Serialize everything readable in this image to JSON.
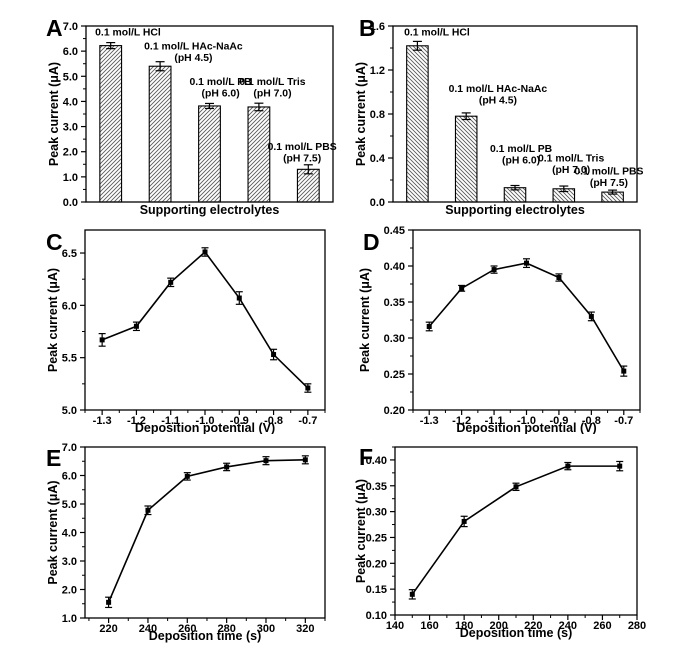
{
  "figure": {
    "background": "#ffffff",
    "ink": "#000000",
    "hatch_color": "#5a5a5a",
    "panels": [
      "A",
      "B",
      "C",
      "D",
      "E",
      "F"
    ]
  },
  "chart_data": [
    {
      "panel": "A",
      "type": "bar",
      "xlabel": "Supporting electrolytes",
      "ylabel": "Peak current (μA)",
      "xlim": [
        0,
        1
      ],
      "ylim": [
        0,
        7
      ],
      "yticks": {
        "values": [
          0,
          1,
          2,
          3,
          4,
          5,
          6,
          7
        ],
        "labels": [
          "0.0",
          "1.0",
          "2.0",
          "3.0",
          "4.0",
          "5.0",
          "6.0",
          "7.0"
        ]
      },
      "hatch": "/",
      "categories": [
        "0.1 mol/L HCl",
        "0.1 mol/L HAc-NaAc (pH 4.5)",
        "0.1 mol/L PB (pH 6.0)",
        "0.1 mol/L Tris (pH 7.0)",
        "0.1 mol/L PBS (pH 7.5)"
      ],
      "values": [
        6.22,
        5.4,
        3.82,
        3.78,
        1.3
      ],
      "errors": [
        0.12,
        0.18,
        0.1,
        0.15,
        0.18
      ],
      "annotations": [
        {
          "lines": [
            "0.1 mol/L HCl"
          ],
          "fx": 0.17,
          "fy": 0.035
        },
        {
          "lines": [
            "0.1 mol/L HAc-NaAc",
            "(pH 4.5)"
          ],
          "fx": 0.435,
          "fy": 0.115
        },
        {
          "lines": [
            "0.1 mol/L PB",
            "(pH 6.0)"
          ],
          "fx": 0.545,
          "fy": 0.315
        },
        {
          "lines": [
            "0.1 mol/L Tris",
            "(pH 7.0)"
          ],
          "fx": 0.755,
          "fy": 0.315
        },
        {
          "lines": [
            "0.1 mol/L PBS",
            "(pH 7.5)"
          ],
          "fx": 0.875,
          "fy": 0.685
        }
      ]
    },
    {
      "panel": "B",
      "type": "bar",
      "xlabel": "Supporting electrolytes",
      "ylabel": "Peak current (μA)",
      "xlim": [
        0,
        1
      ],
      "ylim": [
        0,
        1.6
      ],
      "yticks": {
        "values": [
          0,
          0.4,
          0.8,
          1.2,
          1.6
        ],
        "labels": [
          "0.0",
          "0.4",
          "0.8",
          "1.2",
          "1.6"
        ]
      },
      "hatch": "\\",
      "categories": [
        "0.1 mol/L HCl",
        "0.1 mol/L HAc-NaAc (pH 4.5)",
        "0.1 mol/L PB (pH 6.0)",
        "0.1 mol/L Tris (pH 7.0)",
        "0.1 mol/L PBS (pH 7.5)"
      ],
      "values": [
        1.42,
        0.78,
        0.13,
        0.12,
        0.09
      ],
      "errors": [
        0.04,
        0.03,
        0.02,
        0.025,
        0.018
      ],
      "annotations": [
        {
          "lines": [
            "0.1 mol/L HCl"
          ],
          "fx": 0.18,
          "fy": 0.035
        },
        {
          "lines": [
            "0.1 mol/L HAc-NaAc",
            "(pH 4.5)"
          ],
          "fx": 0.43,
          "fy": 0.355
        },
        {
          "lines": [
            "0.1 mol/L PB",
            "(pH 6.0)"
          ],
          "fx": 0.525,
          "fy": 0.695
        },
        {
          "lines": [
            "0.1 mol/L Tris",
            "(pH 7.0)"
          ],
          "fx": 0.73,
          "fy": 0.75
        },
        {
          "lines": [
            "0.1 mol/L PBS",
            "(pH 7.5)"
          ],
          "fx": 0.885,
          "fy": 0.825
        }
      ]
    },
    {
      "panel": "C",
      "type": "line",
      "xlabel": "Deposition potential (V)",
      "ylabel": "Peak current (μA)",
      "xlim": [
        -1.35,
        -0.65
      ],
      "xticks": {
        "values": [
          -1.3,
          -1.2,
          -1.1,
          -1.0,
          -0.9,
          -0.8,
          -0.7
        ],
        "labels": [
          "-1.3",
          "-1.2",
          "-1.1",
          "-1.0",
          "-0.9",
          "-0.8",
          "-0.7"
        ]
      },
      "ylim": [
        5.0,
        6.72
      ],
      "yticks": {
        "values": [
          5.0,
          5.5,
          6.0,
          6.5
        ],
        "labels": [
          "5.0",
          "5.5",
          "6.0",
          "6.5"
        ]
      },
      "x": [
        -1.3,
        -1.2,
        -1.1,
        -1.0,
        -0.9,
        -0.8,
        -0.7
      ],
      "y": [
        5.67,
        5.8,
        6.22,
        6.51,
        6.07,
        5.53,
        5.21
      ],
      "errors": [
        0.06,
        0.04,
        0.04,
        0.04,
        0.06,
        0.05,
        0.04
      ]
    },
    {
      "panel": "D",
      "type": "line",
      "xlabel": "Deposition potential (V)",
      "ylabel": "Peak current (μA)",
      "xlim": [
        -1.35,
        -0.65
      ],
      "xticks": {
        "values": [
          -1.3,
          -1.2,
          -1.1,
          -1.0,
          -0.9,
          -0.8,
          -0.7
        ],
        "labels": [
          "-1.3",
          "-1.2",
          "-1.1",
          "-1.0",
          "-0.9",
          "-0.8",
          "-0.7"
        ]
      },
      "ylim": [
        0.2,
        0.45
      ],
      "yticks": {
        "values": [
          0.2,
          0.25,
          0.3,
          0.35,
          0.4,
          0.45
        ],
        "labels": [
          "0.20",
          "0.25",
          "0.30",
          "0.35",
          "0.40",
          "0.45"
        ]
      },
      "x": [
        -1.3,
        -1.2,
        -1.1,
        -1.0,
        -0.9,
        -0.8,
        -0.7
      ],
      "y": [
        0.316,
        0.369,
        0.395,
        0.404,
        0.384,
        0.33,
        0.254
      ],
      "errors": [
        0.006,
        0.004,
        0.005,
        0.006,
        0.005,
        0.006,
        0.007
      ]
    },
    {
      "panel": "E",
      "type": "line",
      "xlabel": "Deposition time (s)",
      "ylabel": "Peak current (μA)",
      "xlim": [
        208,
        330
      ],
      "xticks": {
        "values": [
          220,
          240,
          260,
          280,
          300,
          320
        ],
        "labels": [
          "220",
          "240",
          "260",
          "280",
          "300",
          "320"
        ]
      },
      "ylim": [
        1.0,
        7.0
      ],
      "yticks": {
        "values": [
          1,
          2,
          3,
          4,
          5,
          6,
          7
        ],
        "labels": [
          "1.0",
          "2.0",
          "3.0",
          "4.0",
          "5.0",
          "6.0",
          "7.0"
        ]
      },
      "x": [
        220,
        240,
        260,
        280,
        300,
        320
      ],
      "y": [
        1.55,
        4.78,
        5.97,
        6.3,
        6.52,
        6.55
      ],
      "errors": [
        0.18,
        0.15,
        0.13,
        0.13,
        0.14,
        0.14
      ]
    },
    {
      "panel": "F",
      "type": "line",
      "xlabel": "Deposition time (s)",
      "ylabel": "Peak current (μA)",
      "xlim": [
        140,
        280
      ],
      "xticks": {
        "values": [
          140,
          160,
          180,
          200,
          220,
          240,
          260,
          280
        ],
        "labels": [
          "140",
          "160",
          "180",
          "200",
          "220",
          "240",
          "260",
          "280"
        ]
      },
      "ylim": [
        0.1,
        0.425
      ],
      "yticks": {
        "values": [
          0.1,
          0.15,
          0.2,
          0.25,
          0.3,
          0.35,
          0.4
        ],
        "labels": [
          "0.10",
          "0.15",
          "0.20",
          "0.25",
          "0.30",
          "0.35",
          "0.40"
        ]
      },
      "x": [
        150,
        180,
        210,
        240,
        270
      ],
      "y": [
        0.14,
        0.281,
        0.348,
        0.388,
        0.388
      ],
      "errors": [
        0.009,
        0.01,
        0.007,
        0.007,
        0.009
      ]
    }
  ]
}
